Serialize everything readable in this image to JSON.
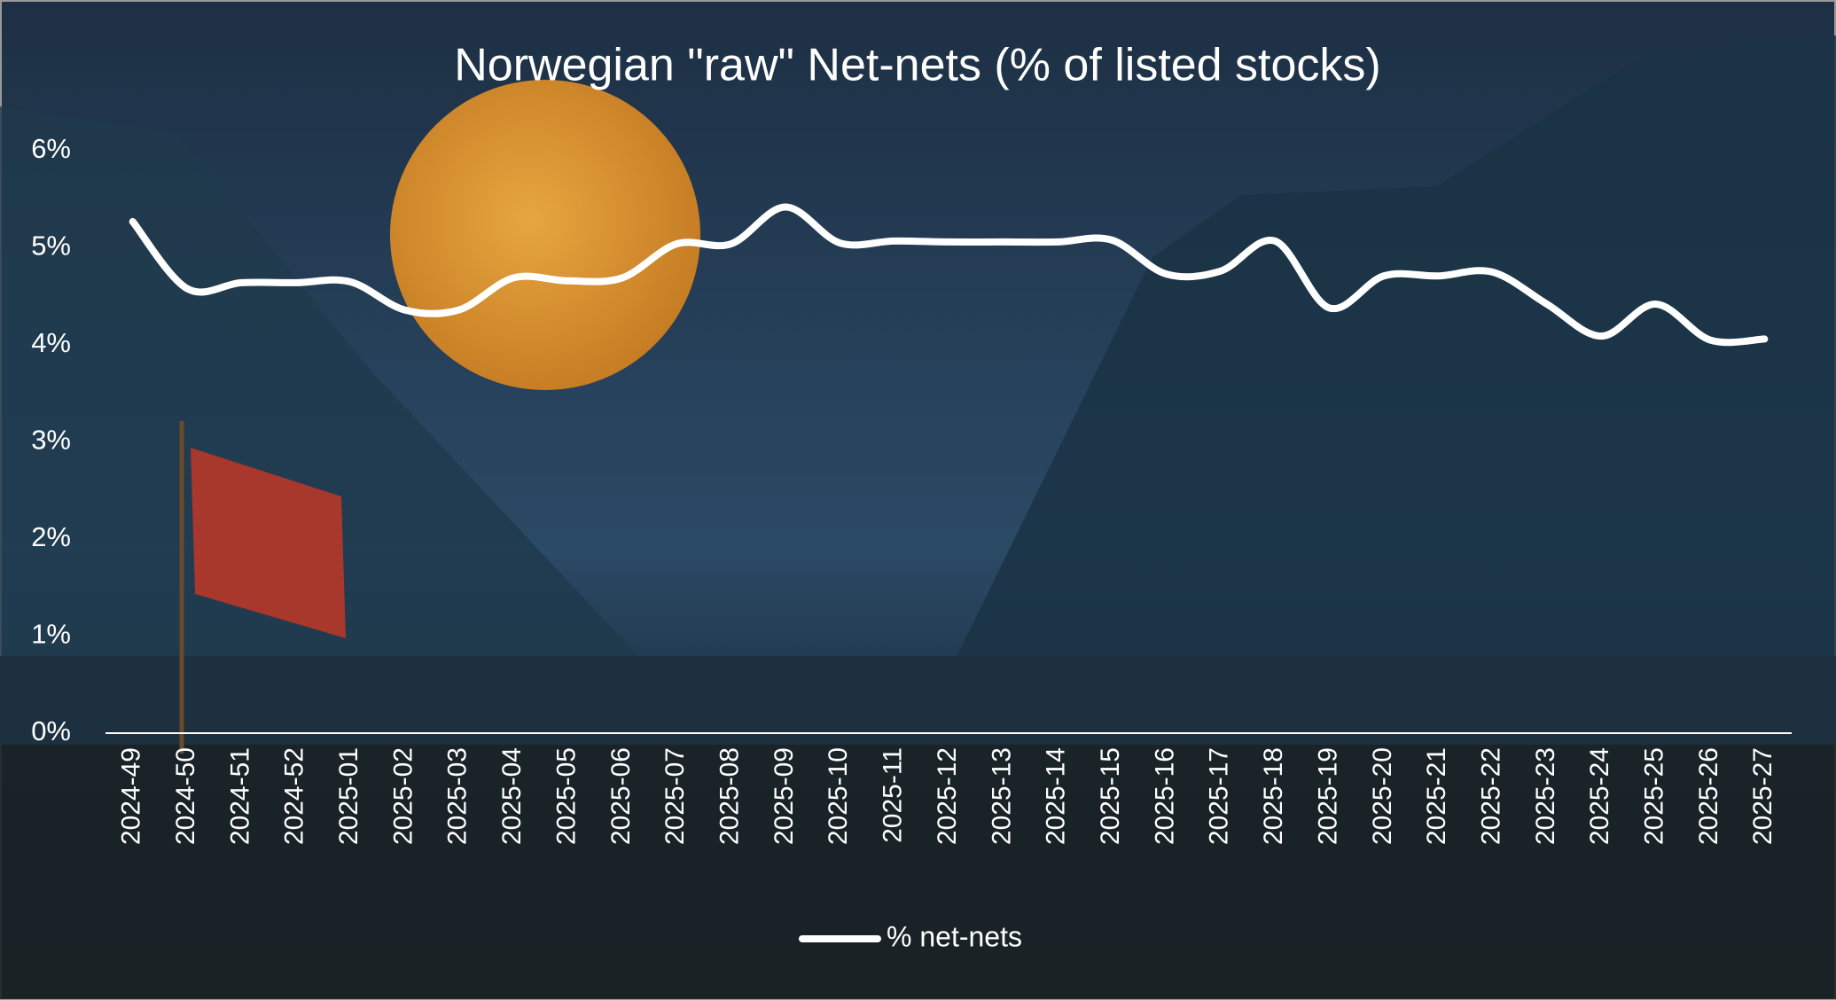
{
  "chart_data": {
    "type": "line",
    "title": "Norwegian \"raw\" Net-nets (% of listed stocks)",
    "categories": [
      "2024-49",
      "2024-50",
      "2024-51",
      "2024-52",
      "2025-01",
      "2025-02",
      "2025-03",
      "2025-04",
      "2025-05",
      "2025-06",
      "2025-07",
      "2025-08",
      "2025-09",
      "2025-10",
      "2025-11",
      "2025-12",
      "2025-13",
      "2025-14",
      "2025-15",
      "2025-16",
      "2025-17",
      "2025-18",
      "2025-19",
      "2025-20",
      "2025-21",
      "2025-22",
      "2025-23",
      "2025-24",
      "2025-25",
      "2025-26",
      "2025-27"
    ],
    "series": [
      {
        "name": "% net-nets",
        "color": "#ffffff",
        "values": [
          5.27,
          4.58,
          4.64,
          4.64,
          4.65,
          4.36,
          4.36,
          4.69,
          4.66,
          4.69,
          5.04,
          5.04,
          5.42,
          5.05,
          5.07,
          5.06,
          5.06,
          5.06,
          5.08,
          4.73,
          4.76,
          5.07,
          4.38,
          4.71,
          4.71,
          4.75,
          4.42,
          4.09,
          4.42,
          4.05,
          4.06
        ]
      }
    ],
    "ylim": [
      0,
      6
    ],
    "yticks": [
      {
        "value": 0,
        "label": "0%"
      },
      {
        "value": 1,
        "label": "1%"
      },
      {
        "value": 2,
        "label": "2%"
      },
      {
        "value": 3,
        "label": "3%"
      },
      {
        "value": 4,
        "label": "4%"
      },
      {
        "value": 5,
        "label": "5%"
      },
      {
        "value": 6,
        "label": "6%"
      }
    ],
    "grid": false,
    "legend": "bottom"
  }
}
